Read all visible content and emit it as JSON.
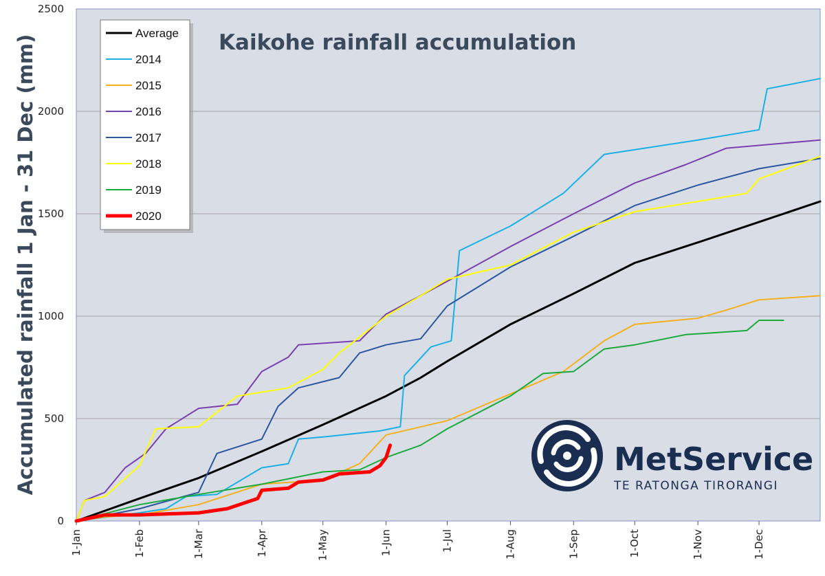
{
  "brand": {
    "name": "MetService",
    "tagline": "TE RATONGA TIRORANGI"
  },
  "colors": {
    "plot_bg": "#d9dde6",
    "grid": "#a2a2a2",
    "axis_text": "#3a4a5c",
    "brand": "#1a2e52"
  },
  "chart_data": {
    "type": "line",
    "title": "Kaikohe rainfall accumulation",
    "xlabel": "",
    "ylabel": "Accumulated rainfall 1 Jan - 31 Dec (mm)",
    "xlim": [
      1,
      366
    ],
    "ylim": [
      0,
      2500
    ],
    "grid": true,
    "legend_position": "top-left",
    "x_ticks": [
      {
        "day": 1,
        "label": "1-Jan"
      },
      {
        "day": 32,
        "label": "1-Feb"
      },
      {
        "day": 61,
        "label": "1-Mar"
      },
      {
        "day": 92,
        "label": "1-Apr"
      },
      {
        "day": 122,
        "label": "1-May"
      },
      {
        "day": 153,
        "label": "1-Jun"
      },
      {
        "day": 183,
        "label": "1-Jul"
      },
      {
        "day": 214,
        "label": "1-Aug"
      },
      {
        "day": 245,
        "label": "1-Sep"
      },
      {
        "day": 275,
        "label": "1-Oct"
      },
      {
        "day": 306,
        "label": "1-Nov"
      },
      {
        "day": 336,
        "label": "1-Dec"
      }
    ],
    "y_ticks": [
      0,
      500,
      1000,
      1500,
      2000,
      2500
    ],
    "series": [
      {
        "name": "Average",
        "color": "#000000",
        "width": 3,
        "points": [
          [
            1,
            0
          ],
          [
            15,
            50
          ],
          [
            32,
            110
          ],
          [
            61,
            210
          ],
          [
            92,
            340
          ],
          [
            122,
            470
          ],
          [
            153,
            610
          ],
          [
            170,
            700
          ],
          [
            183,
            780
          ],
          [
            214,
            960
          ],
          [
            245,
            1110
          ],
          [
            275,
            1260
          ],
          [
            306,
            1360
          ],
          [
            336,
            1460
          ],
          [
            366,
            1560
          ]
        ]
      },
      {
        "name": "2014",
        "color": "#1ab0e6",
        "width": 2,
        "points": [
          [
            1,
            0
          ],
          [
            32,
            40
          ],
          [
            45,
            60
          ],
          [
            55,
            120
          ],
          [
            70,
            130
          ],
          [
            92,
            260
          ],
          [
            105,
            280
          ],
          [
            110,
            400
          ],
          [
            122,
            410
          ],
          [
            150,
            440
          ],
          [
            160,
            460
          ],
          [
            162,
            710
          ],
          [
            175,
            850
          ],
          [
            185,
            880
          ],
          [
            189,
            1320
          ],
          [
            214,
            1440
          ],
          [
            240,
            1600
          ],
          [
            260,
            1790
          ],
          [
            306,
            1860
          ],
          [
            336,
            1910
          ],
          [
            340,
            2110
          ],
          [
            366,
            2160
          ]
        ]
      },
      {
        "name": "2015",
        "color": "#f5b01c",
        "width": 2,
        "points": [
          [
            1,
            0
          ],
          [
            15,
            20
          ],
          [
            32,
            30
          ],
          [
            61,
            80
          ],
          [
            92,
            180
          ],
          [
            122,
            200
          ],
          [
            140,
            280
          ],
          [
            153,
            420
          ],
          [
            183,
            490
          ],
          [
            214,
            620
          ],
          [
            240,
            730
          ],
          [
            260,
            880
          ],
          [
            275,
            960
          ],
          [
            306,
            990
          ],
          [
            320,
            1030
          ],
          [
            336,
            1080
          ],
          [
            366,
            1100
          ]
        ]
      },
      {
        "name": "2016",
        "color": "#7a3fae",
        "width": 2,
        "points": [
          [
            1,
            0
          ],
          [
            5,
            100
          ],
          [
            15,
            140
          ],
          [
            25,
            260
          ],
          [
            35,
            330
          ],
          [
            45,
            450
          ],
          [
            61,
            550
          ],
          [
            80,
            570
          ],
          [
            92,
            730
          ],
          [
            105,
            800
          ],
          [
            110,
            860
          ],
          [
            140,
            880
          ],
          [
            153,
            1010
          ],
          [
            183,
            1170
          ],
          [
            214,
            1340
          ],
          [
            245,
            1500
          ],
          [
            275,
            1650
          ],
          [
            300,
            1740
          ],
          [
            320,
            1820
          ],
          [
            366,
            1860
          ]
        ]
      },
      {
        "name": "2017",
        "color": "#2a55a0",
        "width": 2,
        "points": [
          [
            1,
            0
          ],
          [
            32,
            60
          ],
          [
            61,
            140
          ],
          [
            70,
            330
          ],
          [
            92,
            400
          ],
          [
            100,
            560
          ],
          [
            110,
            650
          ],
          [
            130,
            700
          ],
          [
            140,
            820
          ],
          [
            153,
            860
          ],
          [
            170,
            890
          ],
          [
            183,
            1050
          ],
          [
            214,
            1240
          ],
          [
            245,
            1390
          ],
          [
            275,
            1540
          ],
          [
            306,
            1640
          ],
          [
            336,
            1720
          ],
          [
            366,
            1770
          ]
        ]
      },
      {
        "name": "2018",
        "color": "#ffff00",
        "width": 2,
        "points": [
          [
            1,
            0
          ],
          [
            5,
            100
          ],
          [
            15,
            120
          ],
          [
            32,
            270
          ],
          [
            40,
            450
          ],
          [
            61,
            460
          ],
          [
            80,
            610
          ],
          [
            105,
            650
          ],
          [
            122,
            740
          ],
          [
            130,
            820
          ],
          [
            153,
            1000
          ],
          [
            170,
            1100
          ],
          [
            183,
            1180
          ],
          [
            214,
            1250
          ],
          [
            245,
            1410
          ],
          [
            275,
            1510
          ],
          [
            306,
            1560
          ],
          [
            330,
            1600
          ],
          [
            336,
            1670
          ],
          [
            366,
            1780
          ]
        ]
      },
      {
        "name": "2019",
        "color": "#1aaa3c",
        "width": 2,
        "points": [
          [
            1,
            0
          ],
          [
            32,
            80
          ],
          [
            61,
            130
          ],
          [
            92,
            180
          ],
          [
            122,
            240
          ],
          [
            140,
            250
          ],
          [
            153,
            310
          ],
          [
            170,
            370
          ],
          [
            183,
            450
          ],
          [
            214,
            610
          ],
          [
            230,
            720
          ],
          [
            245,
            730
          ],
          [
            260,
            840
          ],
          [
            275,
            860
          ],
          [
            300,
            910
          ],
          [
            330,
            930
          ],
          [
            336,
            980
          ],
          [
            348,
            980
          ]
        ]
      },
      {
        "name": "2020",
        "color": "#ff0000",
        "width": 5,
        "points": [
          [
            1,
            0
          ],
          [
            15,
            30
          ],
          [
            32,
            30
          ],
          [
            61,
            40
          ],
          [
            75,
            60
          ],
          [
            90,
            110
          ],
          [
            92,
            150
          ],
          [
            105,
            160
          ],
          [
            110,
            190
          ],
          [
            122,
            200
          ],
          [
            130,
            230
          ],
          [
            145,
            240
          ],
          [
            150,
            270
          ],
          [
            153,
            310
          ],
          [
            155,
            370
          ]
        ]
      }
    ]
  }
}
